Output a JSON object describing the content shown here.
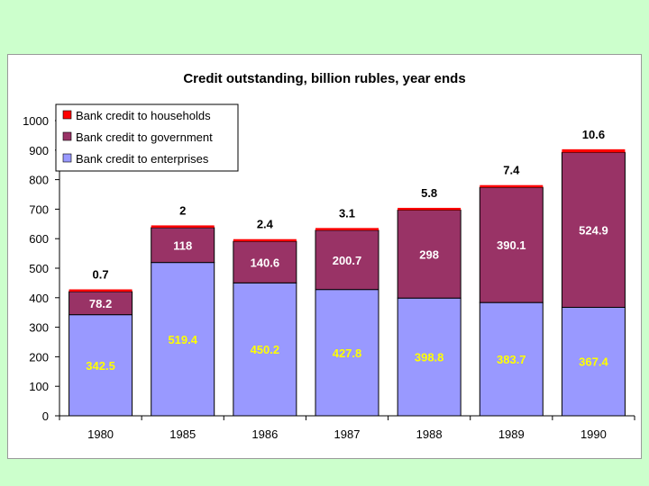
{
  "chart_data": {
    "type": "bar",
    "stacked": true,
    "title": "Credit outstanding, billion rubles, year ends",
    "xlabel": "",
    "ylabel": "",
    "categories": [
      "1980",
      "1985",
      "1986",
      "1987",
      "1988",
      "1989",
      "1990"
    ],
    "series": [
      {
        "name": "Bank credit to enterprises",
        "color": "#9999ff",
        "label_color": "#ffff00",
        "values": [
          342.5,
          519.4,
          450.2,
          427.8,
          398.8,
          383.7,
          367.4
        ],
        "labels": [
          "342.5",
          "519.4",
          "450.2",
          "427.8",
          "398.8",
          "383.7",
          "367.4"
        ]
      },
      {
        "name": "Bank credit to government",
        "color": "#993366",
        "label_color": "#ffffff",
        "values": [
          78.2,
          118,
          140.6,
          200.7,
          298,
          390.1,
          524.9
        ],
        "labels": [
          "78.2",
          "118",
          "140.6",
          "200.7",
          "298",
          "390.1",
          "524.9"
        ]
      },
      {
        "name": "Bank credit to households",
        "color": "#ff0000",
        "label_color": "#000000",
        "values": [
          0.7,
          2,
          2.4,
          3.1,
          5.8,
          7.4,
          10.6
        ],
        "labels": [
          "0.7",
          "2",
          "2.4",
          "3.1",
          "5.8",
          "7.4",
          "10.6"
        ]
      }
    ],
    "ylim": [
      0,
      1000
    ],
    "yticks": [
      "0",
      "100",
      "200",
      "300",
      "400",
      "500",
      "600",
      "700",
      "800",
      "900",
      "1000"
    ],
    "grid": false,
    "legend_position": "top-left",
    "legend_order": [
      "Bank credit to households",
      "Bank credit to government",
      "Bank credit to enterprises"
    ]
  }
}
